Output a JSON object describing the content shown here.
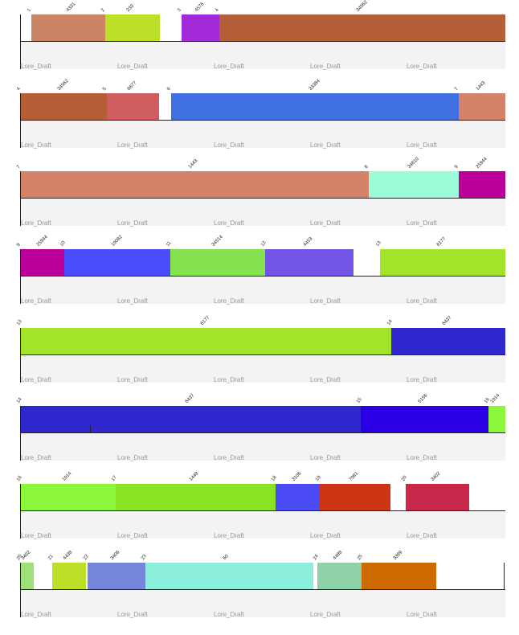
{
  "watermark_text": "Lore_Draft",
  "tracks": [
    {
      "start": 0,
      "end": 62000,
      "right_tick": false,
      "blocks": [
        {
          "start": 1300,
          "len": 10500,
          "color": "#cc8466",
          "num": "1",
          "len_label": "4331"
        },
        {
          "start": 10800,
          "len": 7000,
          "color": "#bce027",
          "num": "2",
          "len_label": "233"
        },
        {
          "start": 20600,
          "len": 4800,
          "color": "#a429d8",
          "num": "3",
          "len_label": "4576"
        },
        {
          "start": 25400,
          "len": 36600,
          "color": "#b55e37",
          "num": "4",
          "len_label": "34562"
        }
      ]
    },
    {
      "start": 0,
      "end": 62000,
      "right_tick": false,
      "blocks": [
        {
          "start": 0,
          "len": 11000,
          "color": "#b55e37",
          "num": "4",
          "len_label": "34562"
        },
        {
          "start": 11000,
          "len": 6700,
          "color": "#d05e5e",
          "num": "5",
          "len_label": "6677"
        },
        {
          "start": 19200,
          "len": 36800,
          "color": "#3f6fe0",
          "num": "6",
          "len_label": "33384"
        },
        {
          "start": 56000,
          "len": 6000,
          "color": "#d4836a",
          "num": "7",
          "len_label": "1443"
        }
      ]
    },
    {
      "start": 0,
      "end": 62000,
      "right_tick": false,
      "blocks": [
        {
          "start": 0,
          "len": 44500,
          "color": "#d4836a",
          "num": "7",
          "len_label": "1443"
        },
        {
          "start": 44500,
          "len": 11500,
          "color": "#9dfcd8",
          "num": "8",
          "len_label": "34610"
        },
        {
          "start": 56000,
          "len": 6000,
          "color": "#bb0099",
          "num": "9",
          "len_label": "25944"
        }
      ]
    },
    {
      "start": 0,
      "end": 62000,
      "right_tick": false,
      "blocks": [
        {
          "start": 0,
          "len": 5600,
          "color": "#bb0099",
          "num": "9",
          "len_label": "25944"
        },
        {
          "start": 5600,
          "len": 13500,
          "color": "#4b4cfc",
          "num": "10",
          "len_label": "19082"
        },
        {
          "start": 19100,
          "len": 12200,
          "color": "#86e24f",
          "num": "11",
          "len_label": "34514"
        },
        {
          "start": 31300,
          "len": 11300,
          "color": "#7355e6",
          "num": "12",
          "len_label": "4453"
        },
        {
          "start": 46000,
          "len": 16000,
          "color": "#a3e32a",
          "num": "13",
          "len_label": "6177"
        }
      ]
    },
    {
      "start": 0,
      "end": 62000,
      "right_tick": false,
      "blocks": [
        {
          "start": 0,
          "len": 47400,
          "color": "#a3e32a",
          "num": "13",
          "len_label": "6177"
        },
        {
          "start": 47400,
          "len": 14600,
          "color": "#3127cf",
          "num": "14",
          "len_label": "6437"
        }
      ]
    },
    {
      "start": 0,
      "end": 62000,
      "right_tick": false,
      "marker_pos": 8800,
      "blocks": [
        {
          "start": 0,
          "len": 43500,
          "color": "#3127cf",
          "num": "14",
          "len_label": "6437"
        },
        {
          "start": 43500,
          "len": 16300,
          "color": "#2b00e6",
          "num": "15",
          "len_label": "5156"
        },
        {
          "start": 59800,
          "len": 2200,
          "color": "#8cf63a",
          "num": "16",
          "len_label": "1914"
        }
      ]
    },
    {
      "start": 0,
      "end": 62000,
      "right_tick": false,
      "blocks": [
        {
          "start": 0,
          "len": 12100,
          "color": "#8cf63a",
          "num": "16",
          "len_label": "1914"
        },
        {
          "start": 12100,
          "len": 20500,
          "color": "#8ae324",
          "num": "17",
          "len_label": "1448"
        },
        {
          "start": 32600,
          "len": 5700,
          "color": "#4c4cf6",
          "num": "18",
          "len_label": "3106"
        },
        {
          "start": 38300,
          "len": 9000,
          "color": "#cd3413",
          "num": "19",
          "len_label": "7981"
        },
        {
          "start": 49200,
          "len": 8200,
          "color": "#c8294a",
          "num": "20",
          "len_label": "3402"
        }
      ]
    },
    {
      "start": 0,
      "end": 62000,
      "right_tick": true,
      "blocks": [
        {
          "start": 0,
          "len": 1600,
          "color": "#9fe07a",
          "num": "20",
          "len_label": "3402"
        },
        {
          "start": 4000,
          "len": 4300,
          "color": "#bce027",
          "num": "21",
          "len_label": "4438"
        },
        {
          "start": 8500,
          "len": 7400,
          "color": "#7585d9",
          "num": "22",
          "len_label": "3406"
        },
        {
          "start": 15900,
          "len": 21500,
          "color": "#8cefdc",
          "num": "23",
          "len_label": "60"
        },
        {
          "start": 37900,
          "len": 5700,
          "color": "#8fd2a9",
          "num": "24",
          "len_label": "4488"
        },
        {
          "start": 43600,
          "len": 9600,
          "color": "#ce6b00",
          "num": "25",
          "len_label": "3399"
        }
      ]
    }
  ]
}
